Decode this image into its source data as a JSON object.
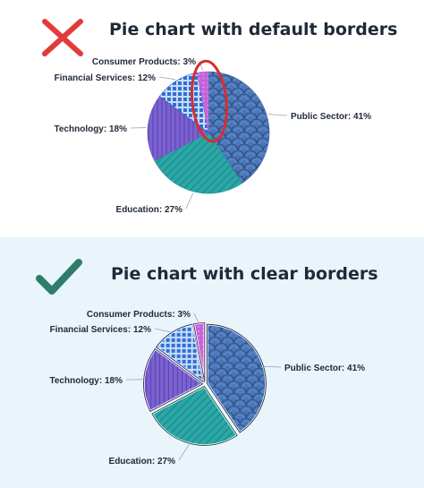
{
  "panels": {
    "bad": {
      "title": "Pie chart with default borders",
      "icon": "red-x-icon",
      "icon_color": "#e23b3b"
    },
    "good": {
      "title": "Pie chart with clear borders",
      "icon": "green-check-icon",
      "icon_color": "#2e7d6b"
    }
  },
  "colors": {
    "highlight_ring": "#d32f2f",
    "good_background": "#eaf4fb",
    "label_text": "#1f2937",
    "leader_line": "#9ca3af"
  },
  "chart_data": [
    {
      "type": "pie",
      "title": "Pie chart with default borders",
      "border": "default",
      "slices": [
        {
          "label": "Public Sector",
          "value": 41,
          "text": "Public Sector: 41%",
          "color": "#4b77b8",
          "pattern": "scales"
        },
        {
          "label": "Education",
          "value": 27,
          "text": "Education: 27%",
          "color": "#2aa7a7",
          "pattern": "diagonal"
        },
        {
          "label": "Technology",
          "value": 18,
          "text": "Technology: 18%",
          "color": "#7b61d6",
          "pattern": "vertical"
        },
        {
          "label": "Financial Services",
          "value": 12,
          "text": "Financial Services: 12%",
          "color": "#2f6fd6",
          "pattern": "grid"
        },
        {
          "label": "Consumer Products",
          "value": 3,
          "text": "Consumer Products: 3%",
          "color": "#c067d8",
          "pattern": "dots"
        }
      ]
    },
    {
      "type": "pie",
      "title": "Pie chart with clear borders",
      "border": "clear",
      "slices": [
        {
          "label": "Public Sector",
          "value": 41,
          "text": "Public Sector: 41%",
          "color": "#4b77b8",
          "pattern": "scales"
        },
        {
          "label": "Education",
          "value": 27,
          "text": "Education: 27%",
          "color": "#2aa7a7",
          "pattern": "diagonal"
        },
        {
          "label": "Technology",
          "value": 18,
          "text": "Technology: 18%",
          "color": "#7b61d6",
          "pattern": "vertical"
        },
        {
          "label": "Financial Services",
          "value": 12,
          "text": "Financial Services: 12%",
          "color": "#2f6fd6",
          "pattern": "grid"
        },
        {
          "label": "Consumer Products",
          "value": 3,
          "text": "Consumer Products: 3%",
          "color": "#c067d8",
          "pattern": "dots"
        }
      ]
    }
  ]
}
